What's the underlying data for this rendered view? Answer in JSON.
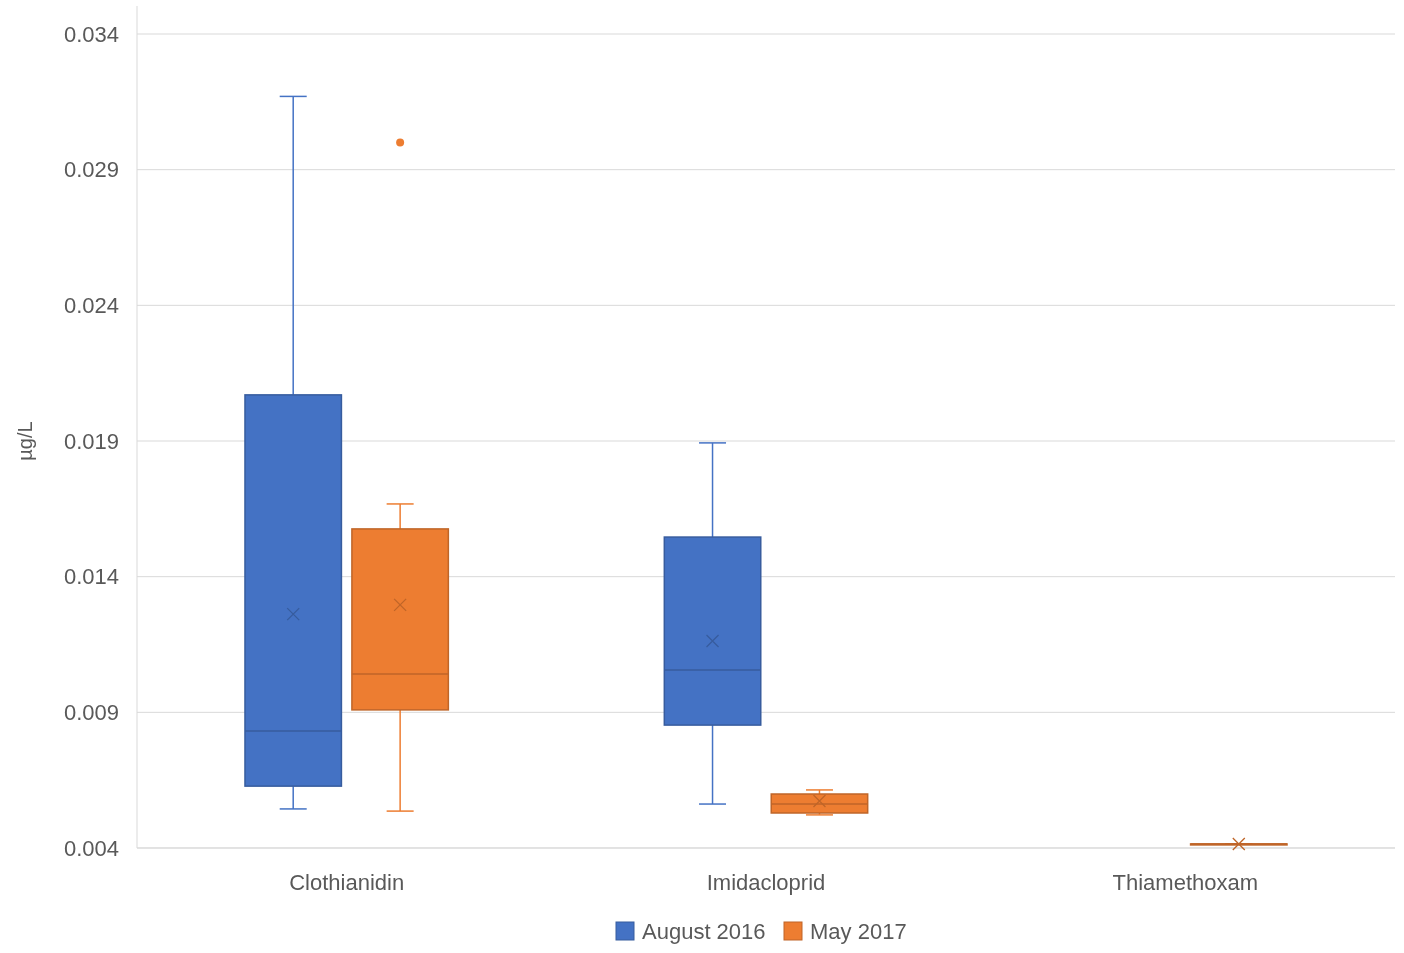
{
  "chart_data": {
    "type": "box",
    "ylabel": "µg/L",
    "categories": [
      "Clothianidin",
      "Imidacloprid",
      "Thiamethoxam"
    ],
    "ylim": [
      0.004,
      0.034
    ],
    "yticks": [
      0.004,
      0.009,
      0.014,
      0.019,
      0.024,
      0.029,
      0.034
    ],
    "grid": "y",
    "legend": "bottom",
    "series": [
      {
        "name": "August 2016",
        "color": "#4472c4",
        "boxes": [
          {
            "low": 0.00544,
            "q1": 0.00628,
            "median": 0.00831,
            "q3": 0.0207,
            "high": 0.0317,
            "mean": 0.01262
          },
          {
            "low": 0.00562,
            "q1": 0.00853,
            "median": 0.01056,
            "q3": 0.01546,
            "high": 0.01893,
            "mean": 0.01163
          },
          null
        ]
      },
      {
        "name": "May 2017",
        "color": "#ed7d31",
        "boxes": [
          {
            "low": 0.00536,
            "q1": 0.00909,
            "median": 0.01041,
            "q3": 0.01576,
            "high": 0.01668,
            "mean": 0.01296,
            "outliers": [
              0.03
            ]
          },
          {
            "low": 0.00522,
            "q1": 0.00529,
            "median": 0.00562,
            "q3": 0.00599,
            "high": 0.00614,
            "mean": 0.00573
          },
          {
            "low": 0.00415,
            "q1": 0.00415,
            "median": 0.00415,
            "q3": 0.00415,
            "high": 0.00415,
            "mean": 0.00415
          }
        ]
      }
    ]
  }
}
